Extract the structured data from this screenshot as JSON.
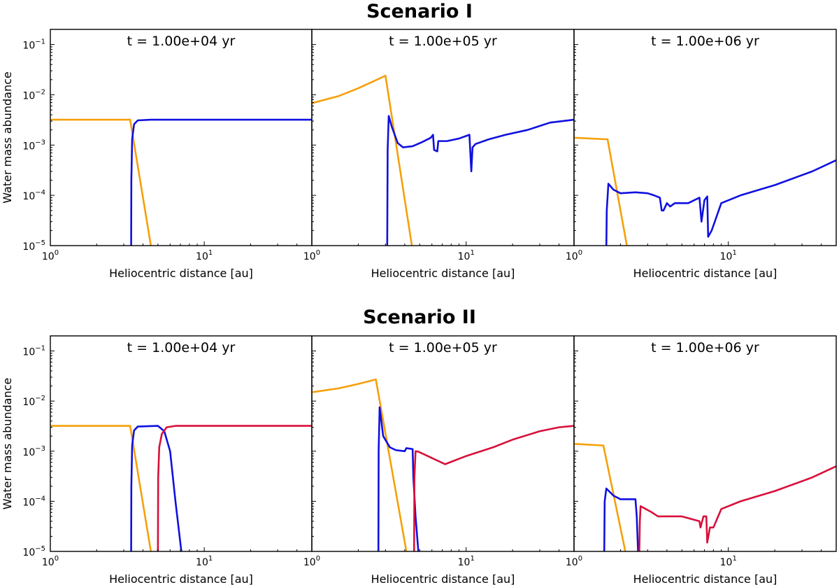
{
  "colors": {
    "orange": "#f5a00a",
    "blue": "#1010e0",
    "red": "#d8103a"
  },
  "chart_data": [
    {
      "type": "line",
      "title": "Scenario I",
      "xlabel": "Heliocentric distance [au]",
      "ylabel": "Water mass abundance",
      "xscale": "log",
      "yscale": "log",
      "ylim": [
        1e-05,
        0.2
      ],
      "yticks": [
        {
          "base": "10",
          "exp": "−5"
        },
        {
          "base": "10",
          "exp": "−4"
        },
        {
          "base": "10",
          "exp": "−3"
        },
        {
          "base": "10",
          "exp": "−2"
        },
        {
          "base": "10",
          "exp": "−1"
        }
      ],
      "panels": [
        {
          "title": "t = 1.00e+04 yr",
          "xlim": [
            1,
            50
          ],
          "xticks": [
            {
              "base": "10",
              "exp": "0"
            },
            {
              "base": "10",
              "exp": "1"
            }
          ],
          "series": [
            {
              "name": "orange",
              "color": "#f5a00a",
              "points": [
                [
                  1,
                  0.0032
                ],
                [
                  3.3,
                  0.0032
                ],
                [
                  4.5,
                  1e-05
                ]
              ]
            },
            {
              "name": "blue",
              "color": "#1010e0",
              "points": [
                [
                  3.35,
                  1e-05
                ],
                [
                  3.36,
                  0.0002
                ],
                [
                  3.4,
                  0.0013
                ],
                [
                  3.5,
                  0.0026
                ],
                [
                  3.7,
                  0.0031
                ],
                [
                  4.5,
                  0.0032
                ],
                [
                  50,
                  0.0032
                ]
              ]
            }
          ]
        },
        {
          "title": "t = 1.00e+05 yr",
          "xlim": [
            1,
            50
          ],
          "xticks": [
            {
              "base": "10",
              "exp": "0"
            },
            {
              "base": "10",
              "exp": "1"
            }
          ],
          "series": [
            {
              "name": "orange",
              "color": "#f5a00a",
              "points": [
                [
                  1,
                  0.0068
                ],
                [
                  1.5,
                  0.0095
                ],
                [
                  2,
                  0.0135
                ],
                [
                  2.5,
                  0.0185
                ],
                [
                  3.0,
                  0.024
                ],
                [
                  4.45,
                  1e-05
                ]
              ]
            },
            {
              "name": "blue",
              "color": "#1010e0",
              "points": [
                [
                  3.08,
                  1e-05
                ],
                [
                  3.1,
                  0.0008
                ],
                [
                  3.15,
                  0.0038
                ],
                [
                  3.3,
                  0.0023
                ],
                [
                  3.6,
                  0.0011
                ],
                [
                  3.9,
                  0.0009
                ],
                [
                  4.5,
                  0.00095
                ],
                [
                  5.2,
                  0.00115
                ],
                [
                  5.9,
                  0.0014
                ],
                [
                  6.1,
                  0.0016
                ],
                [
                  6.2,
                  0.0008
                ],
                [
                  6.5,
                  0.00075
                ],
                [
                  6.6,
                  0.0012
                ],
                [
                  7.5,
                  0.0012
                ],
                [
                  8,
                  0.00125
                ],
                [
                  9,
                  0.00135
                ],
                [
                  10.5,
                  0.0016
                ],
                [
                  10.8,
                  0.0003
                ],
                [
                  11.0,
                  0.0009
                ],
                [
                  11.5,
                  0.00105
                ],
                [
                  14,
                  0.0013
                ],
                [
                  18,
                  0.0016
                ],
                [
                  25,
                  0.002
                ],
                [
                  35,
                  0.0028
                ],
                [
                  50,
                  0.0032
                ]
              ]
            }
          ]
        },
        {
          "title": "t = 1.00e+06 yr",
          "xlim": [
            1,
            50
          ],
          "xticks": [
            {
              "base": "10",
              "exp": "0"
            },
            {
              "base": "10",
              "exp": "1"
            }
          ],
          "series": [
            {
              "name": "orange",
              "color": "#f5a00a",
              "points": [
                [
                  1,
                  0.0014
                ],
                [
                  1.65,
                  0.0013
                ],
                [
                  2.2,
                  1e-05
                ]
              ]
            },
            {
              "name": "blue",
              "color": "#1010e0",
              "points": [
                [
                  1.62,
                  1e-05
                ],
                [
                  1.63,
                  5e-05
                ],
                [
                  1.67,
                  0.00017
                ],
                [
                  1.8,
                  0.00013
                ],
                [
                  2.0,
                  0.00011
                ],
                [
                  2.5,
                  0.000115
                ],
                [
                  3.0,
                  0.00011
                ],
                [
                  3.3,
                  0.0001
                ],
                [
                  3.6,
                  9e-05
                ],
                [
                  3.7,
                  5e-05
                ],
                [
                  3.8,
                  5e-05
                ],
                [
                  4,
                  7e-05
                ],
                [
                  4.2,
                  6e-05
                ],
                [
                  4.5,
                  7e-05
                ],
                [
                  5.5,
                  7e-05
                ],
                [
                  6.5,
                  9e-05
                ],
                [
                  6.7,
                  3e-05
                ],
                [
                  7.0,
                  8e-05
                ],
                [
                  7.3,
                  9.5e-05
                ],
                [
                  7.4,
                  1.5e-05
                ],
                [
                  7.8,
                  2e-05
                ],
                [
                  9,
                  7e-05
                ],
                [
                  12,
                  0.0001
                ],
                [
                  20,
                  0.00016
                ],
                [
                  35,
                  0.0003
                ],
                [
                  50,
                  0.0005
                ]
              ]
            }
          ]
        }
      ]
    },
    {
      "type": "line",
      "title": "Scenario II",
      "xlabel": "Heliocentric distance [au]",
      "ylabel": "Water mass abundance",
      "xscale": "log",
      "yscale": "log",
      "ylim": [
        1e-05,
        0.2
      ],
      "yticks": [
        {
          "base": "10",
          "exp": "−5"
        },
        {
          "base": "10",
          "exp": "−4"
        },
        {
          "base": "10",
          "exp": "−3"
        },
        {
          "base": "10",
          "exp": "−2"
        },
        {
          "base": "10",
          "exp": "−1"
        }
      ],
      "panels": [
        {
          "title": "t = 1.00e+04 yr",
          "xlim": [
            1,
            50
          ],
          "xticks": [
            {
              "base": "10",
              "exp": "0"
            },
            {
              "base": "10",
              "exp": "1"
            }
          ],
          "series": [
            {
              "name": "orange",
              "color": "#f5a00a",
              "points": [
                [
                  1,
                  0.0032
                ],
                [
                  3.3,
                  0.0032
                ],
                [
                  4.5,
                  1e-05
                ]
              ]
            },
            {
              "name": "blue",
              "color": "#1010e0",
              "points": [
                [
                  3.35,
                  1e-05
                ],
                [
                  3.36,
                  0.0002
                ],
                [
                  3.4,
                  0.0013
                ],
                [
                  3.5,
                  0.0026
                ],
                [
                  3.7,
                  0.0031
                ],
                [
                  5.0,
                  0.0032
                ],
                [
                  5.5,
                  0.0025
                ],
                [
                  6.0,
                  0.001
                ],
                [
                  6.5,
                  0.0001
                ],
                [
                  7.1,
                  1e-05
                ]
              ]
            },
            {
              "name": "red",
              "color": "#d8103a",
              "points": [
                [
                  5.0,
                  1e-05
                ],
                [
                  5.02,
                  0.0003
                ],
                [
                  5.1,
                  0.0012
                ],
                [
                  5.3,
                  0.0022
                ],
                [
                  5.7,
                  0.003
                ],
                [
                  6.5,
                  0.0032
                ],
                [
                  50,
                  0.0032
                ]
              ]
            }
          ]
        },
        {
          "title": "t = 1.00e+05 yr",
          "xlim": [
            1,
            50
          ],
          "xticks": [
            {
              "base": "10",
              "exp": "0"
            },
            {
              "base": "10",
              "exp": "1"
            }
          ],
          "series": [
            {
              "name": "orange",
              "color": "#f5a00a",
              "points": [
                [
                  1,
                  0.015
                ],
                [
                  1.5,
                  0.018
                ],
                [
                  2,
                  0.022
                ],
                [
                  2.6,
                  0.027
                ],
                [
                  4.1,
                  1e-05
                ]
              ]
            },
            {
              "name": "blue",
              "color": "#1010e0",
              "points": [
                [
                  2.7,
                  1e-05
                ],
                [
                  2.71,
                  0.001
                ],
                [
                  2.75,
                  0.0075
                ],
                [
                  2.9,
                  0.002
                ],
                [
                  3.2,
                  0.0012
                ],
                [
                  3.5,
                  0.00105
                ],
                [
                  4.0,
                  0.001
                ],
                [
                  4.1,
                  0.00115
                ],
                [
                  4.5,
                  0.0011
                ],
                [
                  4.55,
                  0.0003
                ],
                [
                  4.7,
                  5e-05
                ],
                [
                  4.9,
                  1e-05
                ]
              ]
            },
            {
              "name": "red",
              "color": "#d8103a",
              "points": [
                [
                  4.6,
                  1e-05
                ],
                [
                  4.62,
                  0.0003
                ],
                [
                  4.7,
                  0.001
                ],
                [
                  4.9,
                  0.00098
                ],
                [
                  7.3,
                  0.00055
                ],
                [
                  10,
                  0.0008
                ],
                [
                  15,
                  0.0012
                ],
                [
                  20,
                  0.0017
                ],
                [
                  30,
                  0.0025
                ],
                [
                  40,
                  0.003
                ],
                [
                  50,
                  0.0032
                ]
              ]
            }
          ]
        },
        {
          "title": "t = 1.00e+06 yr",
          "xlim": [
            1,
            50
          ],
          "xticks": [
            {
              "base": "10",
              "exp": "0"
            },
            {
              "base": "10",
              "exp": "1"
            }
          ],
          "series": [
            {
              "name": "orange",
              "color": "#f5a00a",
              "points": [
                [
                  1,
                  0.0014
                ],
                [
                  1.55,
                  0.0013
                ],
                [
                  2.15,
                  1e-05
                ]
              ]
            },
            {
              "name": "blue",
              "color": "#1010e0",
              "points": [
                [
                  1.57,
                  1e-05
                ],
                [
                  1.58,
                  0.0001
                ],
                [
                  1.62,
                  0.00018
                ],
                [
                  1.8,
                  0.00013
                ],
                [
                  2.0,
                  0.00011
                ],
                [
                  2.5,
                  0.00011
                ],
                [
                  2.55,
                  5e-05
                ],
                [
                  2.6,
                  1e-05
                ]
              ]
            },
            {
              "name": "red",
              "color": "#d8103a",
              "points": [
                [
                  2.65,
                  1e-05
                ],
                [
                  2.67,
                  4e-05
                ],
                [
                  2.7,
                  8e-05
                ],
                [
                  3.2,
                  6e-05
                ],
                [
                  3.5,
                  5e-05
                ],
                [
                  4,
                  5e-05
                ],
                [
                  5,
                  5e-05
                ],
                [
                  6.5,
                  4e-05
                ],
                [
                  6.6,
                  3e-05
                ],
                [
                  6.9,
                  5e-05
                ],
                [
                  7.2,
                  5e-05
                ],
                [
                  7.3,
                  1.5e-05
                ],
                [
                  7.6,
                  3e-05
                ],
                [
                  8,
                  3e-05
                ],
                [
                  9,
                  7e-05
                ],
                [
                  12,
                  0.0001
                ],
                [
                  20,
                  0.00016
                ],
                [
                  35,
                  0.0003
                ],
                [
                  50,
                  0.0005
                ]
              ]
            }
          ]
        }
      ]
    }
  ]
}
